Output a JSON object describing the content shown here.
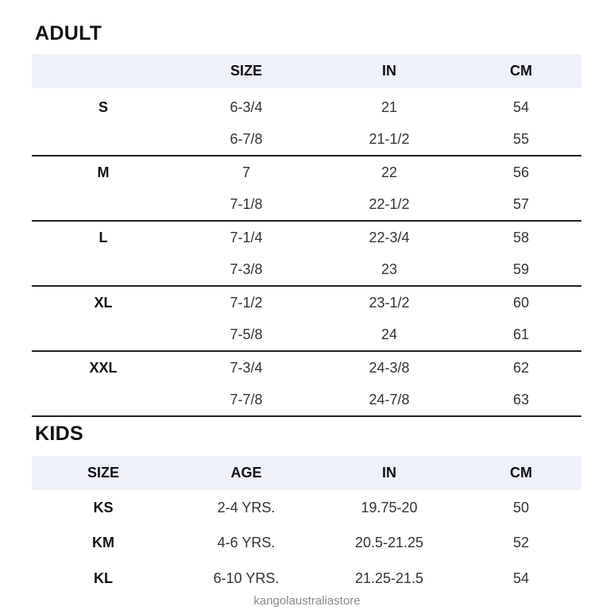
{
  "adult": {
    "title": "ADULT",
    "headers": [
      "",
      "SIZE",
      "IN",
      "CM"
    ],
    "groups": [
      {
        "label": "S",
        "rows": [
          [
            "6-3/4",
            "21",
            "54"
          ],
          [
            "6-7/8",
            "21-1/2",
            "55"
          ]
        ]
      },
      {
        "label": "M",
        "rows": [
          [
            "7",
            "22",
            "56"
          ],
          [
            "7-1/8",
            "22-1/2",
            "57"
          ]
        ]
      },
      {
        "label": "L",
        "rows": [
          [
            "7-1/4",
            "22-3/4",
            "58"
          ],
          [
            "7-3/8",
            "23",
            "59"
          ]
        ]
      },
      {
        "label": "XL",
        "rows": [
          [
            "7-1/2",
            "23-1/2",
            "60"
          ],
          [
            "7-5/8",
            "24",
            "61"
          ]
        ]
      },
      {
        "label": "XXL",
        "rows": [
          [
            "7-3/4",
            "24-3/8",
            "62"
          ],
          [
            "7-7/8",
            "24-7/8",
            "63"
          ]
        ]
      }
    ]
  },
  "kids": {
    "title": "KIDS",
    "headers": [
      "SIZE",
      "AGE",
      "IN",
      "CM"
    ],
    "rows": [
      [
        "KS",
        "2-4 YRS.",
        "19.75-20",
        "50"
      ],
      [
        "KM",
        "4-6 YRS.",
        "20.5-21.25",
        "52"
      ],
      [
        "KL",
        "6-10 YRS.",
        "21.25-21.5",
        "54"
      ]
    ]
  },
  "watermark": "kangolaustraliastore",
  "colors": {
    "header_band": "#eef1f8",
    "divider": "#222222"
  }
}
